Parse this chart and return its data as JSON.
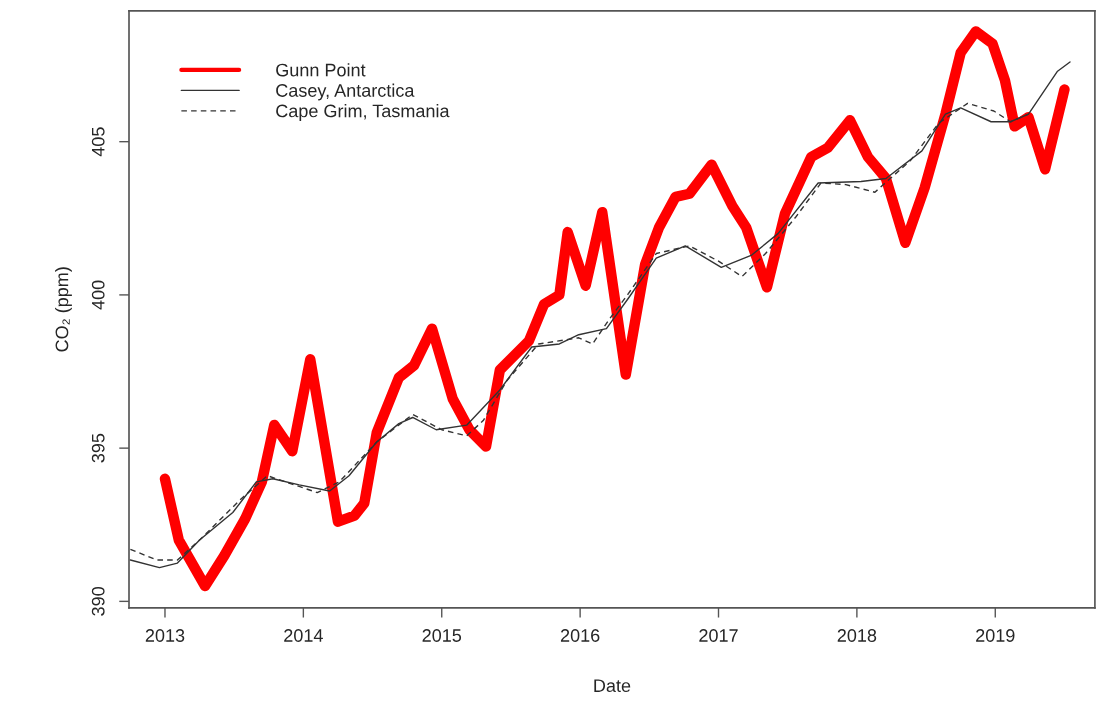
{
  "chart_data": {
    "type": "line",
    "xlabel": "Date",
    "ylabel": "CO₂ (ppm)",
    "xlim": [
      2012.74,
      2019.72
    ],
    "xticks": [
      2013,
      2014,
      2015,
      2016,
      2017,
      2018,
      2019
    ],
    "ylim": [
      389.79,
      409.27
    ],
    "yticks": [
      390,
      395,
      400,
      405
    ],
    "grid": false,
    "legend": "top left",
    "marker": "none",
    "series": [
      {
        "name": "Gunn Point",
        "color": "#ff0000",
        "line_style": "solid",
        "x": [
          2013.0,
          2013.1,
          2013.29,
          2013.43,
          2013.58,
          2013.7,
          2013.79,
          2013.92,
          2014.05,
          2014.25,
          2014.37,
          2014.44,
          2014.53,
          2014.69,
          2014.8,
          2014.93,
          2015.08,
          2015.2,
          2015.32,
          2015.42,
          2015.63,
          2015.74,
          2015.85,
          2015.91,
          2016.04,
          2016.16,
          2016.33,
          2016.47,
          2016.57,
          2016.69,
          2016.79,
          2016.95,
          2017.1,
          2017.2,
          2017.35,
          2017.48,
          2017.67,
          2017.79,
          2017.95,
          2018.08,
          2018.21,
          2018.35,
          2018.49,
          2018.64,
          2018.75,
          2018.86,
          2018.98,
          2019.07,
          2019.14,
          2019.24,
          2019.36,
          2019.5
        ],
        "values": [
          394.0,
          392.0,
          390.5,
          391.5,
          392.7,
          393.9,
          395.76,
          394.9,
          397.9,
          392.6,
          392.8,
          393.2,
          395.5,
          397.3,
          397.7,
          398.9,
          396.6,
          395.6,
          395.05,
          397.55,
          398.5,
          399.7,
          400.0,
          402.05,
          400.3,
          402.7,
          397.4,
          401.0,
          402.2,
          403.2,
          403.3,
          404.25,
          402.9,
          402.2,
          400.25,
          402.65,
          404.5,
          404.8,
          405.7,
          404.5,
          403.8,
          401.7,
          403.5,
          405.9,
          407.9,
          408.6,
          408.2,
          407.0,
          405.5,
          405.8,
          404.1,
          406.7
        ]
      },
      {
        "name": "Casey, Antarctica",
        "color": "#333333",
        "line_style": "solid",
        "x": [
          2012.75,
          2012.96,
          2013.09,
          2013.25,
          2013.49,
          2013.66,
          2013.78,
          2013.97,
          2014.19,
          2014.33,
          2014.53,
          2014.69,
          2014.79,
          2014.96,
          2015.18,
          2015.42,
          2015.65,
          2015.85,
          2015.99,
          2016.19,
          2016.35,
          2016.55,
          2016.76,
          2017.02,
          2017.24,
          2017.43,
          2017.72,
          2018.03,
          2018.21,
          2018.47,
          2018.64,
          2018.75,
          2018.97,
          2019.11,
          2019.24,
          2019.45,
          2019.54
        ],
        "values": [
          391.35,
          391.1,
          391.25,
          392.0,
          392.9,
          393.9,
          394.0,
          393.8,
          393.6,
          394.1,
          395.2,
          395.8,
          396.0,
          395.6,
          395.75,
          396.9,
          398.3,
          398.4,
          398.7,
          398.9,
          399.9,
          401.2,
          401.6,
          400.9,
          401.3,
          402.0,
          403.65,
          403.7,
          403.8,
          404.7,
          405.9,
          406.1,
          405.65,
          405.65,
          405.9,
          407.3,
          407.6
        ]
      },
      {
        "name": "Cape Grim, Tasmania",
        "color": "#333333",
        "line_style": "dashed",
        "x": [
          2012.75,
          2012.94,
          2013.09,
          2013.25,
          2013.54,
          2013.74,
          2013.97,
          2014.1,
          2014.26,
          2014.53,
          2014.79,
          2015.0,
          2015.18,
          2015.3,
          2015.47,
          2015.7,
          2015.99,
          2016.09,
          2016.21,
          2016.35,
          2016.55,
          2016.79,
          2017.0,
          2017.17,
          2017.34,
          2017.56,
          2017.74,
          2017.92,
          2018.13,
          2018.39,
          2018.59,
          2018.8,
          2018.99,
          2019.11,
          2019.24
        ],
        "values": [
          391.7,
          391.35,
          391.35,
          392.0,
          393.3,
          394.1,
          393.75,
          393.55,
          393.9,
          395.2,
          396.1,
          395.6,
          395.4,
          395.9,
          397.2,
          398.4,
          398.6,
          398.4,
          399.2,
          400.05,
          401.35,
          401.6,
          401.1,
          400.6,
          401.35,
          402.55,
          403.65,
          403.6,
          403.35,
          404.4,
          405.6,
          406.25,
          406.0,
          405.65,
          405.9
        ]
      }
    ]
  }
}
